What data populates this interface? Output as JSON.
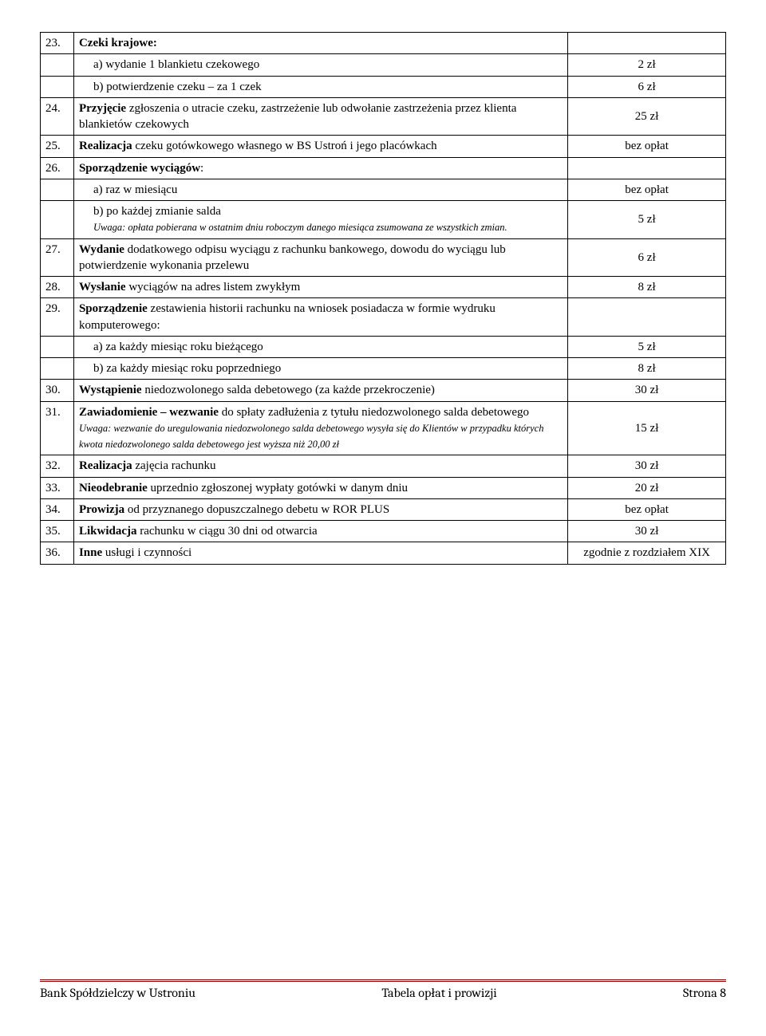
{
  "rows": [
    {
      "num": "23.",
      "text": "Czeki krajowe:",
      "val": "",
      "bold": true
    },
    {
      "num": "",
      "text": "a) wydanie 1 blankietu czekowego",
      "val": "2 zł",
      "indent": true
    },
    {
      "num": "",
      "text": "b) potwierdzenie czeku – za 1 czek",
      "val": "6 zł",
      "indent": true
    },
    {
      "num": "24.",
      "text": "Przyjęcie zgłoszenia o utracie czeku, zastrzeżenie lub odwołanie zastrzeżenia przez klienta blankietów czekowych",
      "val": "25 zł",
      "bold_first": "Przyjęcie"
    },
    {
      "num": "25.",
      "text": "Realizacja czeku gotówkowego własnego w BS Ustroń i jego placówkach",
      "val": "bez opłat",
      "bold_first": "Realizacja"
    },
    {
      "num": "26.",
      "text": "Sporządzenie wyciągów:",
      "val": "",
      "bold_first": "Sporządzenie wyciągów"
    },
    {
      "num": "",
      "text": "a) raz w miesiącu",
      "val": "bez opłat",
      "indent": true
    },
    {
      "num": "",
      "text": "b) po każdej zmianie salda",
      "sub": "Uwaga: opłata pobierana w ostatnim dniu roboczym danego miesiąca zsumowana ze wszystkich zmian.",
      "val": "5 zł",
      "indent": true
    },
    {
      "num": "27.",
      "text": "Wydanie dodatkowego odpisu wyciągu z rachunku bankowego, dowodu do wyciągu lub potwierdzenie wykonania przelewu",
      "val": "6 zł",
      "bold_first": "Wydanie"
    },
    {
      "num": "28.",
      "text": "Wysłanie wyciągów na adres listem zwykłym",
      "val": "8 zł",
      "bold_first": "Wysłanie"
    },
    {
      "num": "29.",
      "text": "Sporządzenie zestawienia historii rachunku na wniosek posiadacza w formie wydruku komputerowego:",
      "val": "",
      "bold_first": "Sporządzenie"
    },
    {
      "num": "",
      "text": "a) za każdy miesiąc roku bieżącego",
      "val": "5 zł",
      "indent": true
    },
    {
      "num": "",
      "text": "b) za każdy miesiąc roku poprzedniego",
      "val": "8 zł",
      "indent": true
    },
    {
      "num": "30.",
      "text": "Wystąpienie niedozwolonego salda debetowego (za każde przekroczenie)",
      "val": "30 zł",
      "bold_first": "Wystąpienie"
    },
    {
      "num": "31.",
      "text": "Zawiadomienie – wezwanie do spłaty zadłużenia z tytułu niedozwolonego salda debetowego",
      "sub": "Uwaga: wezwanie do uregulowania niedozwolonego salda debetowego wysyła się do Klientów w przypadku których kwota niedozwolonego salda debetowego jest wyższa niż 20,00 zł",
      "val": "15 zł",
      "bold_first": "Zawiadomienie – wezwanie"
    },
    {
      "num": "32.",
      "text": "Realizacja zajęcia rachunku",
      "val": "30 zł",
      "bold_first": "Realizacja"
    },
    {
      "num": "33.",
      "text": "Nieodebranie uprzednio zgłoszonej wypłaty gotówki w danym dniu",
      "val": "20 zł",
      "bold_first": "Nieodebranie"
    },
    {
      "num": "34.",
      "text": "Prowizja od przyznanego dopuszczalnego debetu w ROR PLUS",
      "val": "bez opłat",
      "bold_first": "Prowizja"
    },
    {
      "num": "35.",
      "text": "Likwidacja rachunku w ciągu 30 dni od otwarcia",
      "val": "30 zł",
      "bold_first": "Likwidacja"
    },
    {
      "num": "36.",
      "text": "Inne usługi i czynności",
      "val": "zgodnie z rozdziałem XIX",
      "bold_first": "Inne"
    }
  ],
  "footer": {
    "left": "Bank Spółdzielczy w Ustroniu",
    "center": "Tabela opłat i prowizji",
    "right": "Strona 8"
  }
}
